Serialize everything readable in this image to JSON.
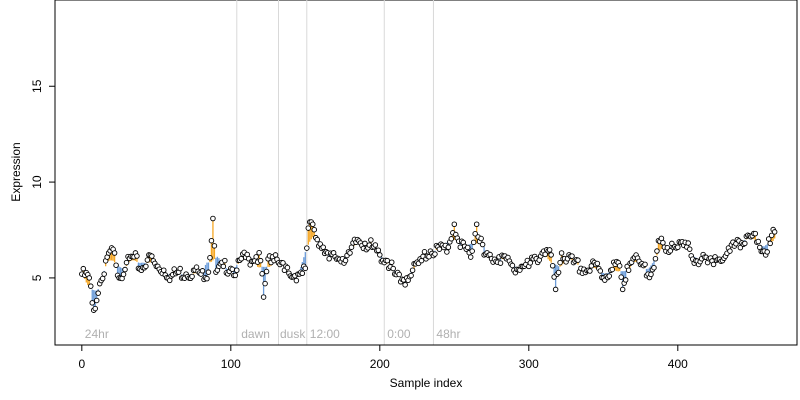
{
  "chart_data": {
    "type": "scatter",
    "xlabel": "Sample index",
    "ylabel": "Expression",
    "xlim": [
      -18,
      480
    ],
    "ylim": [
      1.5,
      19.5
    ],
    "x_ticks": [
      0,
      100,
      200,
      300,
      400
    ],
    "y_ticks": [
      5,
      10,
      15
    ],
    "baseline_description": "running mean; orange segments where points lie above it, blue where below",
    "colors": {
      "above": "#f5a623",
      "below": "#6a9bd8",
      "points": "#000000",
      "vlines": "#d9d9d9",
      "annotations": "#b0b0b0"
    },
    "vertical_lines": [
      104,
      132,
      151,
      203,
      236
    ],
    "annotations": [
      {
        "x": 2,
        "label": "24hr"
      },
      {
        "x": 107,
        "label": "dawn"
      },
      {
        "x": 133,
        "label": "dusk"
      },
      {
        "x": 153,
        "label": "12:00"
      },
      {
        "x": 205,
        "label": "0:00"
      },
      {
        "x": 238,
        "label": "48hr"
      }
    ],
    "anchors": [
      [
        0,
        5.2
      ],
      [
        5,
        5.0
      ],
      [
        7,
        3.7
      ],
      [
        9,
        3.4
      ],
      [
        12,
        4.7
      ],
      [
        15,
        5.2
      ],
      [
        18,
        6.3
      ],
      [
        22,
        6.3
      ],
      [
        25,
        5.0
      ],
      [
        30,
        5.8
      ],
      [
        35,
        6.1
      ],
      [
        40,
        5.4
      ],
      [
        45,
        6.2
      ],
      [
        50,
        5.6
      ],
      [
        55,
        5.4
      ],
      [
        60,
        5.1
      ],
      [
        65,
        5.3
      ],
      [
        70,
        5.2
      ],
      [
        75,
        5.4
      ],
      [
        80,
        5.2
      ],
      [
        85,
        5.3
      ],
      [
        88,
        8.1
      ],
      [
        90,
        5.3
      ],
      [
        95,
        5.6
      ],
      [
        100,
        5.5
      ],
      [
        104,
        5.4
      ],
      [
        107,
        6.0
      ],
      [
        112,
        6.0
      ],
      [
        117,
        6.1
      ],
      [
        120,
        5.9
      ],
      [
        122,
        4.0
      ],
      [
        125,
        6.0
      ],
      [
        130,
        6.2
      ],
      [
        133,
        5.7
      ],
      [
        136,
        5.4
      ],
      [
        140,
        5.1
      ],
      [
        145,
        5.2
      ],
      [
        150,
        5.5
      ],
      [
        152,
        7.6
      ],
      [
        155,
        7.8
      ],
      [
        158,
        7.0
      ],
      [
        162,
        6.6
      ],
      [
        166,
        6.0
      ],
      [
        170,
        6.1
      ],
      [
        175,
        6.0
      ],
      [
        180,
        6.3
      ],
      [
        185,
        7.0
      ],
      [
        190,
        6.8
      ],
      [
        195,
        6.6
      ],
      [
        200,
        6.2
      ],
      [
        205,
        5.9
      ],
      [
        210,
        5.2
      ],
      [
        214,
        4.8
      ],
      [
        218,
        5.0
      ],
      [
        222,
        5.4
      ],
      [
        228,
        5.9
      ],
      [
        234,
        6.4
      ],
      [
        240,
        6.5
      ],
      [
        246,
        6.6
      ],
      [
        250,
        7.8
      ],
      [
        254,
        6.6
      ],
      [
        258,
        6.5
      ],
      [
        262,
        6.4
      ],
      [
        265,
        7.8
      ],
      [
        270,
        6.2
      ],
      [
        275,
        6.0
      ],
      [
        280,
        6.1
      ],
      [
        285,
        6.0
      ],
      [
        290,
        5.4
      ],
      [
        295,
        5.6
      ],
      [
        300,
        5.6
      ],
      [
        305,
        6.0
      ],
      [
        310,
        6.4
      ],
      [
        315,
        6.2
      ],
      [
        318,
        4.4
      ],
      [
        322,
        6.3
      ],
      [
        326,
        6.0
      ],
      [
        330,
        5.8
      ],
      [
        335,
        5.5
      ],
      [
        340,
        5.4
      ],
      [
        345,
        5.7
      ],
      [
        350,
        5.0
      ],
      [
        355,
        5.4
      ],
      [
        360,
        5.8
      ],
      [
        363,
        4.4
      ],
      [
        366,
        5.6
      ],
      [
        370,
        6.0
      ],
      [
        375,
        5.7
      ],
      [
        380,
        5.2
      ],
      [
        385,
        6.0
      ],
      [
        388,
        6.9
      ],
      [
        392,
        6.4
      ],
      [
        396,
        6.8
      ],
      [
        400,
        6.6
      ],
      [
        404,
        6.7
      ],
      [
        408,
        6.5
      ],
      [
        412,
        5.9
      ],
      [
        416,
        6.0
      ],
      [
        420,
        5.8
      ],
      [
        425,
        6.1
      ],
      [
        430,
        5.9
      ],
      [
        435,
        6.4
      ],
      [
        440,
        7.0
      ],
      [
        445,
        6.8
      ],
      [
        450,
        7.2
      ],
      [
        454,
        6.9
      ],
      [
        458,
        6.4
      ],
      [
        462,
        6.8
      ],
      [
        465,
        7.4
      ]
    ]
  }
}
